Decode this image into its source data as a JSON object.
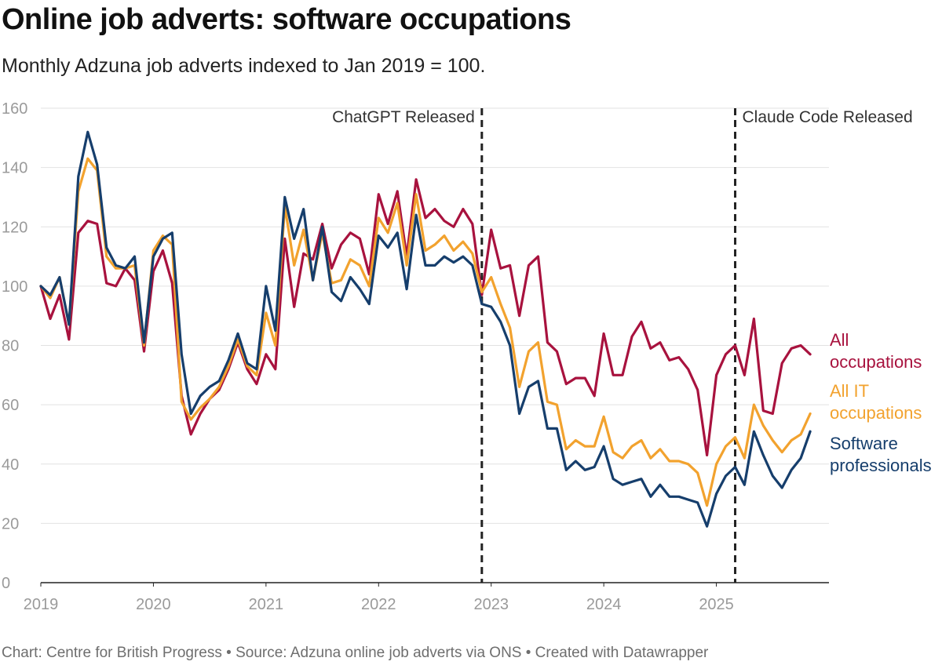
{
  "header": {
    "title": "Online job adverts: software occupations",
    "subtitle": "Monthly Adzuna job adverts indexed to Jan 2019 = 100."
  },
  "footer": {
    "text": "Chart: Centre for British Progress • Source: Adzuna online job adverts via ONS • Created with Datawrapper"
  },
  "chart_data": {
    "type": "line",
    "title": "Online job adverts: software occupations",
    "subtitle": "Monthly Adzuna job adverts indexed to Jan 2019 = 100.",
    "xlabel": "",
    "ylabel": "",
    "ylim": [
      0,
      160
    ],
    "yticks": [
      0,
      20,
      40,
      60,
      80,
      100,
      120,
      140,
      160
    ],
    "x_start": "2019-01",
    "x_end_decimal_year": 2026.0,
    "xtick_labels": [
      "2019",
      "2020",
      "2021",
      "2022",
      "2023",
      "2024",
      "2025"
    ],
    "grid": true,
    "events": [
      {
        "label": "ChatGPT Released",
        "date": 2022.917
      },
      {
        "label": "Claude Code Released",
        "date": 2025.167
      }
    ],
    "series": [
      {
        "name": "All occupations",
        "label_lines": [
          "All",
          "occupations"
        ],
        "color": "#a8123e",
        "values": [
          100,
          89,
          97,
          82,
          118,
          122,
          121,
          101,
          100,
          106,
          102,
          78,
          105,
          112,
          101,
          63,
          50,
          57,
          62,
          65,
          72,
          81,
          72,
          67,
          77,
          72,
          116,
          93,
          111,
          109,
          121,
          106,
          114,
          118,
          116,
          104,
          131,
          121,
          132,
          110,
          136,
          123,
          126,
          122,
          120,
          126,
          121,
          97,
          119,
          106,
          107,
          90,
          107,
          110,
          81,
          78,
          67,
          69,
          69,
          63,
          84,
          70,
          70,
          83,
          88,
          79,
          81,
          75,
          76,
          72,
          65,
          43,
          70,
          77,
          80,
          70,
          89,
          58,
          57,
          74,
          79,
          80,
          77
        ]
      },
      {
        "name": "All IT occupations",
        "label_lines": [
          "All IT",
          "occupations"
        ],
        "color": "#f2a22e",
        "values": [
          100,
          96,
          103,
          87,
          132,
          143,
          139,
          110,
          106,
          106,
          107,
          80,
          112,
          117,
          114,
          61,
          55,
          59,
          62,
          66,
          73,
          82,
          73,
          70,
          91,
          80,
          127,
          107,
          119,
          102,
          118,
          101,
          102,
          109,
          107,
          100,
          123,
          118,
          128,
          107,
          131,
          112,
          114,
          117,
          112,
          115,
          111,
          98,
          103,
          94,
          86,
          66,
          78,
          81,
          61,
          60,
          45,
          48,
          46,
          46,
          56,
          44,
          42,
          46,
          48,
          42,
          45,
          41,
          41,
          40,
          37,
          26,
          40,
          46,
          49,
          42,
          60,
          53,
          48,
          44,
          48,
          50,
          57
        ]
      },
      {
        "name": "Software professionals",
        "label_lines": [
          "Software",
          "professionals"
        ],
        "color": "#163e6c",
        "values": [
          100,
          97,
          103,
          87,
          137,
          152,
          141,
          113,
          107,
          106,
          110,
          81,
          110,
          116,
          118,
          77,
          57,
          63,
          66,
          68,
          75,
          84,
          74,
          72,
          100,
          85,
          130,
          116,
          126,
          102,
          120,
          98,
          95,
          103,
          99,
          94,
          117,
          113,
          118,
          99,
          124,
          107,
          107,
          110,
          108,
          110,
          107,
          94,
          93,
          88,
          80,
          57,
          66,
          68,
          52,
          52,
          38,
          41,
          38,
          39,
          46,
          35,
          33,
          34,
          35,
          29,
          33,
          29,
          29,
          28,
          27,
          19,
          30,
          36,
          39,
          33,
          51,
          43,
          36,
          32,
          38,
          42,
          51
        ]
      }
    ]
  }
}
